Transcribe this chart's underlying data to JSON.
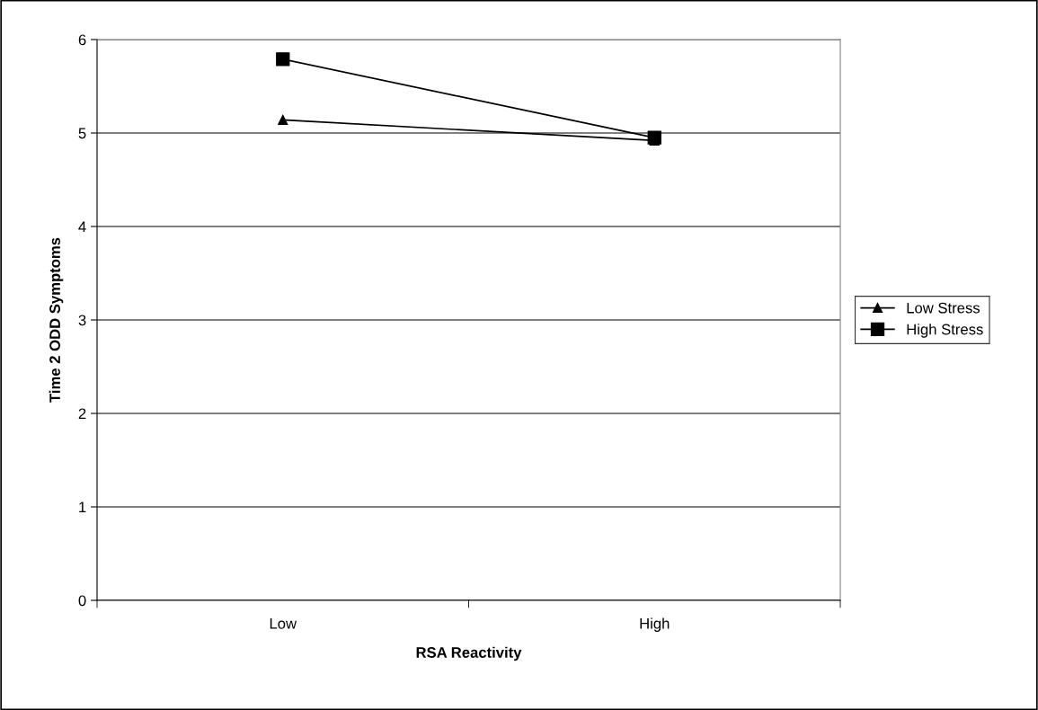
{
  "chart_data": {
    "type": "line",
    "xlabel": "RSA Reactivity",
    "ylabel": "Time 2 ODD Symptoms",
    "categories": [
      "Low",
      "High"
    ],
    "series": [
      {
        "name": "Low Stress",
        "color": "#000000",
        "marker": "triangle",
        "values": [
          5.14,
          4.92
        ]
      },
      {
        "name": "High Stress",
        "color": "#000000",
        "marker": "square",
        "values": [
          5.79,
          4.95
        ]
      }
    ],
    "ylim": [
      0,
      6
    ],
    "yticks": [
      0,
      1,
      2,
      3,
      4,
      5,
      6
    ],
    "grid": "y",
    "legend": "right"
  }
}
